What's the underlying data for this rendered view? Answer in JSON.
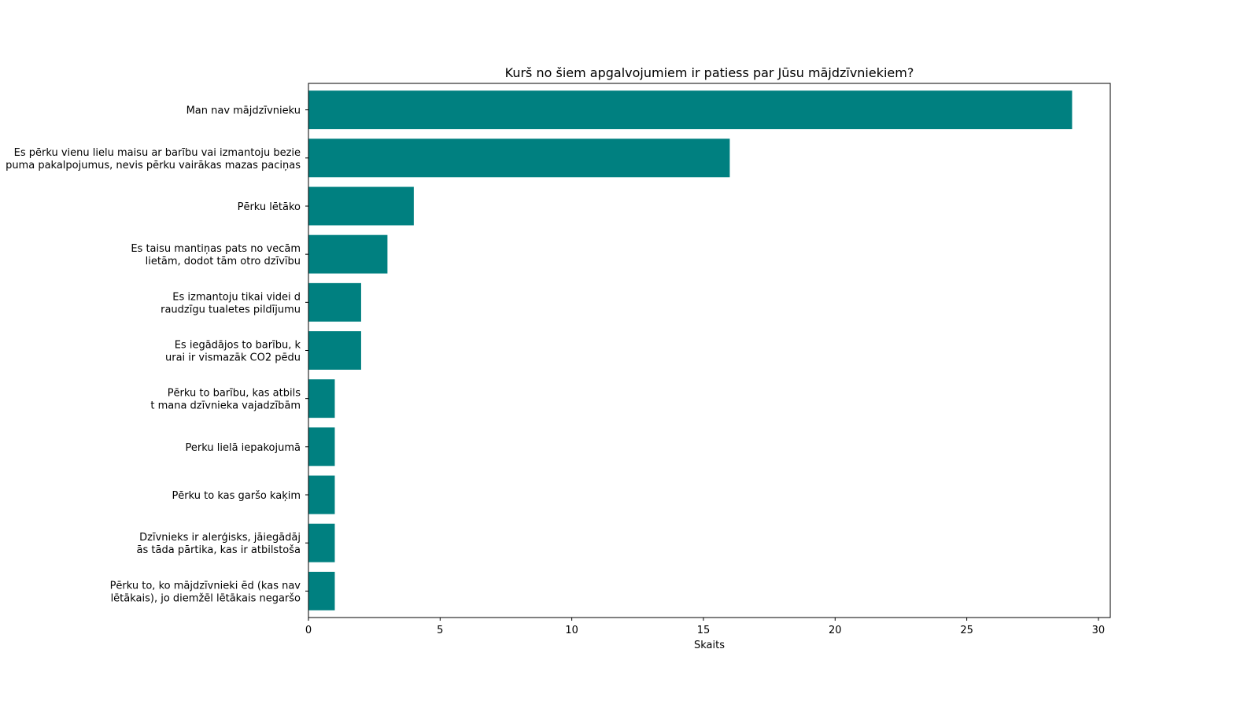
{
  "chart_data": {
    "type": "bar",
    "orientation": "horizontal",
    "title": "Kurš no šiem apgalvojumiem ir patiess par Jūsu mājdzīvniekiem?",
    "xlabel": "Skaits",
    "ylabel": "",
    "xlim": [
      0,
      30.45
    ],
    "xticks": [
      0,
      5,
      10,
      15,
      20,
      25,
      30
    ],
    "grid": false,
    "bar_color": "#008080",
    "categories": [
      [
        "Man nav mājdzīvnieku"
      ],
      [
        "Es pērku vienu lielu maisu ar barību vai izmantoju bezie",
        "puma pakalpojumus, nevis pērku vairākas mazas paciņas"
      ],
      [
        "Pērku lētāko"
      ],
      [
        "Es taisu mantiņas pats no vecām",
        "lietām, dodot tām otro dzīvību"
      ],
      [
        "Es izmantoju tikai videi d",
        "raudzīgu tualetes pildījumu"
      ],
      [
        "Es iegādājos to barību, k",
        "urai ir vismazāk CO2 pēdu"
      ],
      [
        "Pērku to barību, kas atbils",
        "t mana dzīvnieka vajadzībām"
      ],
      [
        "Perku lielā iepakojumā"
      ],
      [
        "Pērku to kas garšo kaķim"
      ],
      [
        "Dzīvnieks ir alerģisks, jāiegādāj",
        "ās tāda pārtika, kas ir atbilstoša"
      ],
      [
        "Pērku to, ko mājdzīvnieki ēd (kas nav",
        "lētākais), jo diemžēl lētākais negaršo"
      ]
    ],
    "values": [
      29,
      16,
      4,
      3,
      2,
      2,
      1,
      1,
      1,
      1,
      1
    ]
  }
}
